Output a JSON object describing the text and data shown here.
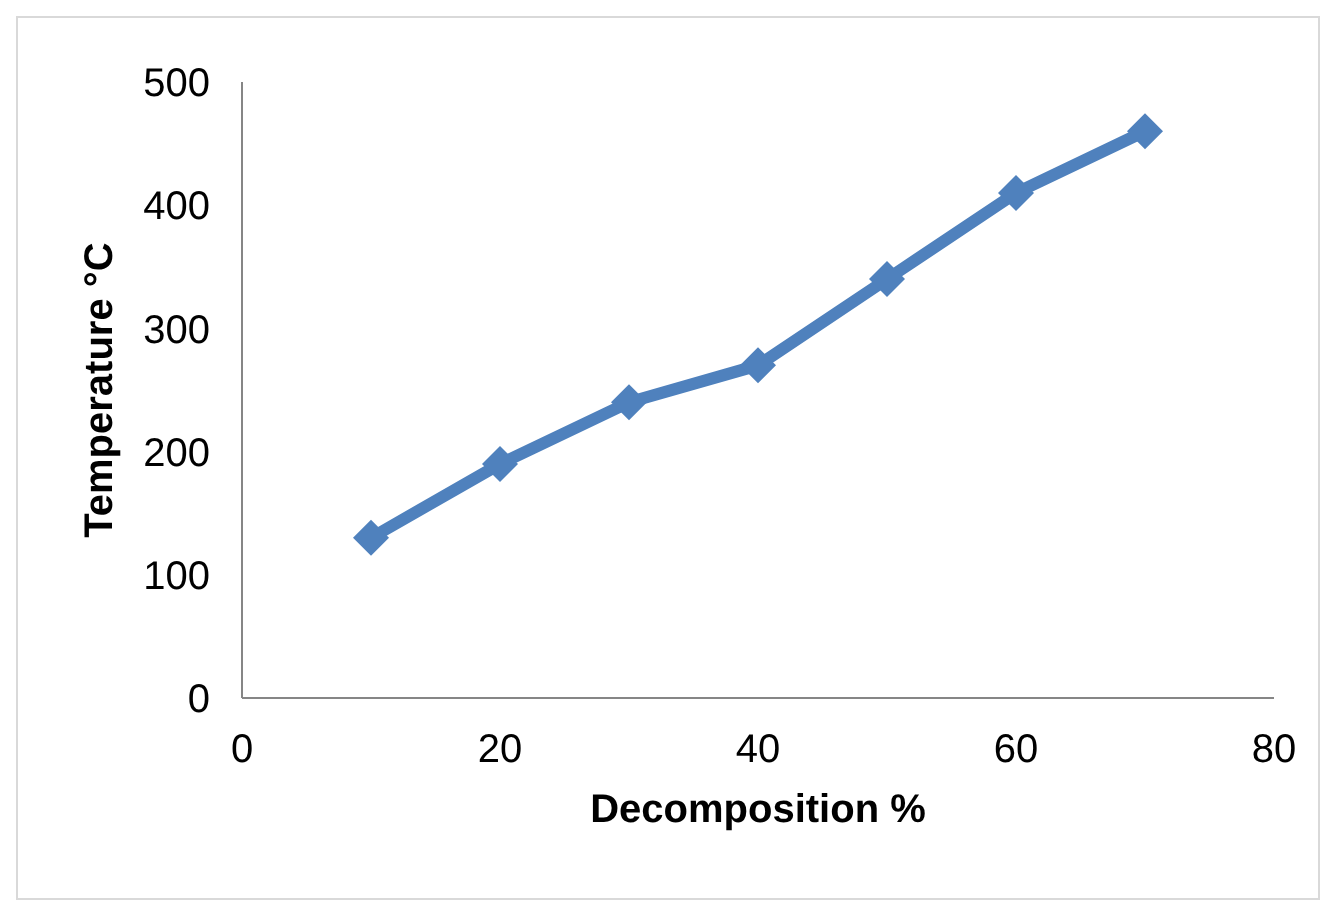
{
  "chart_data": {
    "type": "line",
    "xlabel": "Decomposition %",
    "ylabel": "Temperature °C",
    "x": [
      10,
      20,
      30,
      40,
      50,
      60,
      70
    ],
    "series": [
      {
        "color": "#4f81bd",
        "values": [
          130,
          190,
          240,
          270,
          340,
          410,
          460
        ]
      }
    ],
    "xlim": [
      0,
      80
    ],
    "xticks": [
      0,
      20,
      40,
      60,
      80
    ],
    "ylim": [
      0,
      500
    ],
    "yticks": [
      0,
      100,
      200,
      300,
      400,
      500
    ],
    "marker": "diamond",
    "line_style": "solid",
    "grid": false,
    "legend": false
  }
}
